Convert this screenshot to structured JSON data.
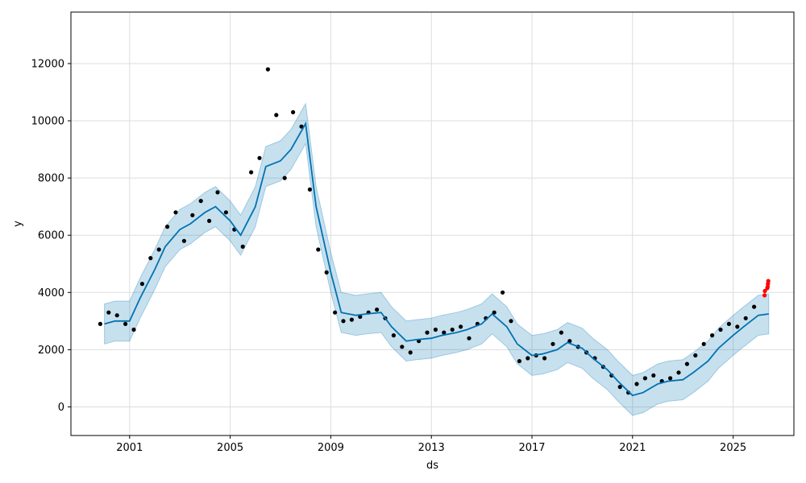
{
  "chart_data": {
    "type": "scatter",
    "title": "",
    "xlabel": "ds",
    "ylabel": "y",
    "x_ticks": [
      "2001",
      "2005",
      "2009",
      "2013",
      "2017",
      "2021",
      "2025"
    ],
    "y_ticks": [
      "0",
      "2000",
      "4000",
      "6000",
      "8000",
      "10000",
      "12000"
    ],
    "xlim": [
      "1998-09",
      "2027-06"
    ],
    "ylim": [
      -1000,
      13800
    ],
    "grid": true,
    "colors": {
      "actual_points": "#000000",
      "forecast_line": "#0072b2",
      "uncertainty_band": "#0072b2",
      "recent_points": "#ff0000",
      "grid": "#dddddd"
    },
    "series": [
      {
        "kind": "forecast",
        "x": [
          "2000-01",
          "2000-06",
          "2001-01",
          "2001-06",
          "2002-01",
          "2002-06",
          "2003-01",
          "2003-06",
          "2004-01",
          "2004-06",
          "2005-01",
          "2005-06",
          "2006-01",
          "2006-06",
          "2007-01",
          "2007-06",
          "2008-01",
          "2008-06",
          "2009-01",
          "2009-06",
          "2010-01",
          "2010-06",
          "2011-01",
          "2011-06",
          "2012-01",
          "2012-06",
          "2013-01",
          "2013-06",
          "2014-01",
          "2014-06",
          "2015-01",
          "2015-06",
          "2016-01",
          "2016-06",
          "2017-01",
          "2017-06",
          "2018-01",
          "2018-06",
          "2019-01",
          "2019-06",
          "2020-01",
          "2020-06",
          "2021-01",
          "2021-06",
          "2022-01",
          "2022-06",
          "2023-01",
          "2023-06",
          "2024-01",
          "2024-06",
          "2025-01",
          "2025-06",
          "2026-01",
          "2026-06"
        ],
        "yhat": [
          2900,
          3000,
          3000,
          3800,
          4800,
          5600,
          6200,
          6400,
          6800,
          7000,
          6500,
          6000,
          7000,
          8400,
          8600,
          9000,
          9900,
          7000,
          4700,
          3300,
          3200,
          3250,
          3300,
          2800,
          2300,
          2350,
          2400,
          2500,
          2600,
          2700,
          2900,
          3250,
          2800,
          2200,
          1800,
          1850,
          2000,
          2250,
          2050,
          1700,
          1300,
          900,
          400,
          500,
          800,
          900,
          950,
          1200,
          1600,
          2050,
          2500,
          2800,
          3200,
          3250
        ],
        "lower": [
          2200,
          2300,
          2300,
          3100,
          4100,
          4900,
          5500,
          5700,
          6100,
          6300,
          5800,
          5300,
          6300,
          7700,
          7900,
          8300,
          9200,
          6300,
          4000,
          2600,
          2500,
          2550,
          2600,
          2100,
          1600,
          1650,
          1700,
          1800,
          1900,
          2000,
          2200,
          2550,
          2100,
          1500,
          1100,
          1150,
          1300,
          1550,
          1350,
          1000,
          600,
          200,
          -300,
          -200,
          100,
          200,
          250,
          500,
          900,
          1350,
          1800,
          2100,
          2500,
          2550
        ],
        "upper": [
          3600,
          3700,
          3700,
          4500,
          5500,
          6300,
          6900,
          7100,
          7500,
          7700,
          7200,
          6700,
          7700,
          9100,
          9300,
          9700,
          10600,
          7700,
          5400,
          4000,
          3900,
          3950,
          4000,
          3500,
          3000,
          3050,
          3100,
          3200,
          3300,
          3400,
          3600,
          3950,
          3500,
          2900,
          2500,
          2550,
          2700,
          2950,
          2750,
          2400,
          2000,
          1600,
          1100,
          1200,
          1500,
          1600,
          1650,
          1900,
          2300,
          2750,
          3200,
          3500,
          3900,
          3950
        ]
      },
      {
        "kind": "actual",
        "x": [
          "1999-11",
          "2000-03",
          "2000-07",
          "2000-11",
          "2001-03",
          "2001-07",
          "2001-11",
          "2002-03",
          "2002-07",
          "2002-11",
          "2003-03",
          "2003-07",
          "2003-11",
          "2004-03",
          "2004-07",
          "2004-11",
          "2005-03",
          "2005-07",
          "2005-11",
          "2006-03",
          "2006-07",
          "2006-11",
          "2007-03",
          "2007-07",
          "2007-11",
          "2008-03",
          "2008-07",
          "2008-11",
          "2009-03",
          "2009-07",
          "2009-11",
          "2010-03",
          "2010-07",
          "2010-11",
          "2011-03",
          "2011-07",
          "2011-11",
          "2012-03",
          "2012-07",
          "2012-11",
          "2013-03",
          "2013-07",
          "2013-11",
          "2014-03",
          "2014-07",
          "2014-11",
          "2015-03",
          "2015-07",
          "2015-11",
          "2016-03",
          "2016-07",
          "2016-11",
          "2017-03",
          "2017-07",
          "2017-11",
          "2018-03",
          "2018-07",
          "2018-11",
          "2019-03",
          "2019-07",
          "2019-11",
          "2020-03",
          "2020-07",
          "2020-11",
          "2021-03",
          "2021-07",
          "2021-11",
          "2022-03",
          "2022-07",
          "2022-11",
          "2023-03",
          "2023-07",
          "2023-11",
          "2024-03",
          "2024-07",
          "2024-11",
          "2025-03",
          "2025-07",
          "2025-11"
        ],
        "y": [
          2900,
          3300,
          3200,
          2900,
          2700,
          4300,
          5200,
          5500,
          6300,
          6800,
          5800,
          6700,
          7200,
          6500,
          7500,
          6800,
          6200,
          5600,
          8200,
          8700,
          11800,
          10200,
          8000,
          10300,
          9800,
          7600,
          5500,
          4700,
          3300,
          3000,
          3050,
          3150,
          3300,
          3400,
          3100,
          2500,
          2100,
          1900,
          2300,
          2600,
          2700,
          2600,
          2700,
          2800,
          2400,
          2900,
          3100,
          3300,
          4000,
          3000,
          1600,
          1700,
          1800,
          1700,
          2200,
          2600,
          2300,
          2100,
          1900,
          1700,
          1400,
          1100,
          700,
          500,
          800,
          1000,
          1100,
          900,
          1000,
          1200,
          1500,
          1800,
          2200,
          2500,
          2700,
          2900,
          2800,
          3100,
          3500
        ]
      },
      {
        "kind": "recent",
        "x": [
          "2026-04",
          "2026-04",
          "2026-05",
          "2026-05",
          "2026-05",
          "2026-05"
        ],
        "y": [
          3900,
          4050,
          4150,
          4200,
          4300,
          4400
        ]
      }
    ]
  }
}
